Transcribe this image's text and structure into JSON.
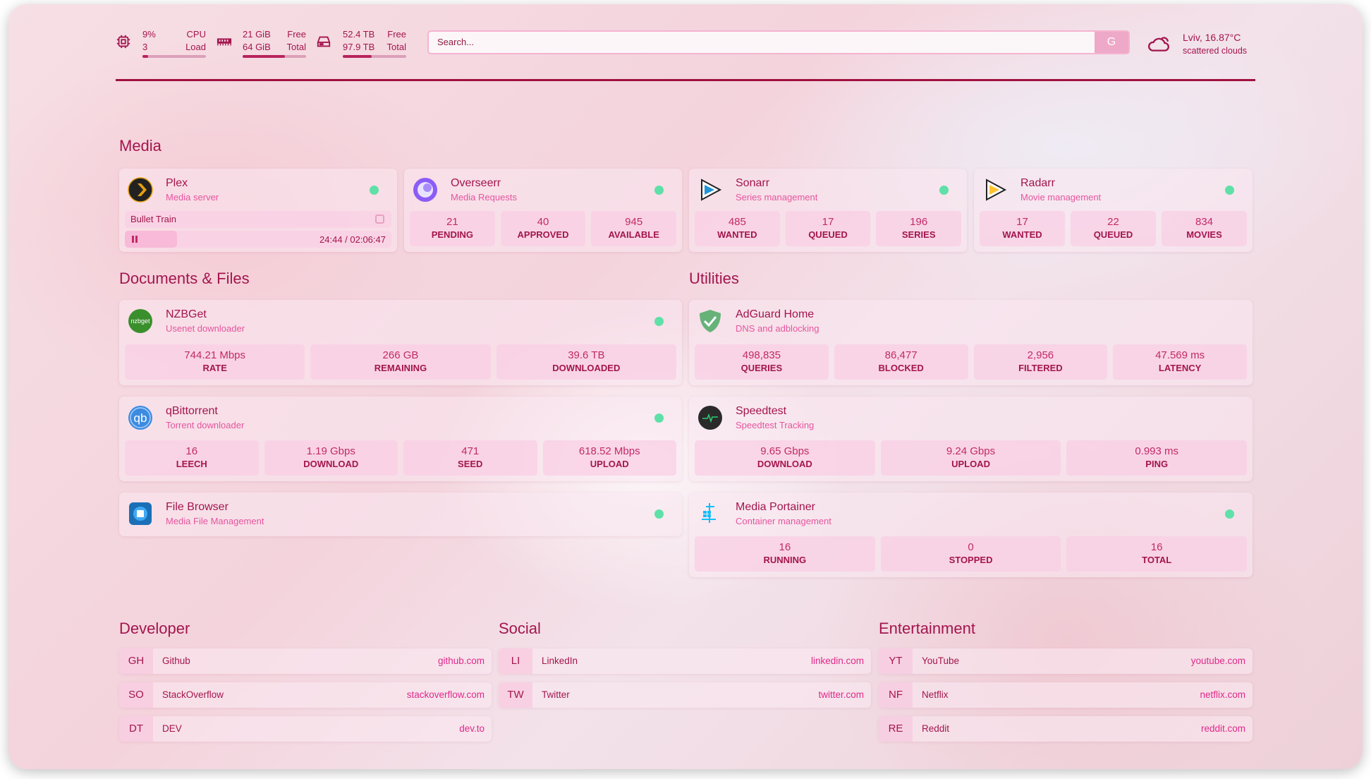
{
  "system": {
    "cpu": {
      "icon": "cpu-icon",
      "value1": "9%",
      "value2": "3",
      "label1": "CPU",
      "label2": "Load",
      "fill_percent": 9
    },
    "memory": {
      "icon": "memory-icon",
      "value1": "21 GiB",
      "value2": "64 GiB",
      "label1": "Free",
      "label2": "Total",
      "fill_percent": 67
    },
    "disk": {
      "icon": "disk-icon",
      "value1": "52.4 TB",
      "value2": "97.9 TB",
      "label1": "Free",
      "label2": "Total",
      "fill_percent": 46
    }
  },
  "search": {
    "placeholder": "Search...",
    "provider_button": "G"
  },
  "weather": {
    "icon": "cloud-icon",
    "location": "Lviv, 16.87°C",
    "condition": "scattered clouds"
  },
  "colors": {
    "accent": "#a3154d",
    "subtitle": "#e6559e",
    "status_online": "#5fe0a8",
    "divider": "#a0103f"
  },
  "groups": [
    {
      "title": "Media",
      "services": [
        {
          "name": "Plex",
          "desc": "Media server",
          "icon": "plex-icon",
          "status": "online",
          "now_playing": {
            "title": "Bullet Train",
            "time": "24:44 / 02:06:47",
            "progress_percent": 19.5,
            "state": "paused"
          }
        },
        {
          "name": "Overseerr",
          "desc": "Media Requests",
          "icon": "overseerr-icon",
          "status": "online",
          "stats": [
            {
              "v": "21",
              "l": "PENDING"
            },
            {
              "v": "40",
              "l": "APPROVED"
            },
            {
              "v": "945",
              "l": "AVAILABLE"
            }
          ]
        },
        {
          "name": "Sonarr",
          "desc": "Series management",
          "icon": "sonarr-icon",
          "status": "online",
          "stats": [
            {
              "v": "485",
              "l": "WANTED"
            },
            {
              "v": "17",
              "l": "QUEUED"
            },
            {
              "v": "196",
              "l": "SERIES"
            }
          ]
        },
        {
          "name": "Radarr",
          "desc": "Movie management",
          "icon": "radarr-icon",
          "status": "online",
          "stats": [
            {
              "v": "17",
              "l": "WANTED"
            },
            {
              "v": "22",
              "l": "QUEUED"
            },
            {
              "v": "834",
              "l": "MOVIES"
            }
          ]
        }
      ]
    },
    {
      "title": "Documents & Files",
      "services": [
        {
          "name": "NZBGet",
          "desc": "Usenet downloader",
          "icon": "nzbget-icon",
          "icon_text": "nzbget",
          "status": "online",
          "stats": [
            {
              "v": "744.21 Mbps",
              "l": "RATE"
            },
            {
              "v": "266 GB",
              "l": "REMAINING"
            },
            {
              "v": "39.6 TB",
              "l": "DOWNLOADED"
            }
          ]
        },
        {
          "name": "qBittorrent",
          "desc": "Torrent downloader",
          "icon": "qbittorrent-icon",
          "icon_text": "qb",
          "status": "online",
          "stats": [
            {
              "v": "16",
              "l": "LEECH"
            },
            {
              "v": "1.19 Gbps",
              "l": "DOWNLOAD"
            },
            {
              "v": "471",
              "l": "SEED"
            },
            {
              "v": "618.52 Mbps",
              "l": "UPLOAD"
            }
          ]
        },
        {
          "name": "File Browser",
          "desc": "Media File Management",
          "icon": "filebrowser-icon",
          "status": "online"
        }
      ]
    },
    {
      "title": "Utilities",
      "services": [
        {
          "name": "AdGuard Home",
          "desc": "DNS and adblocking",
          "icon": "adguard-shield-icon",
          "stats": [
            {
              "v": "498,835",
              "l": "QUERIES"
            },
            {
              "v": "86,477",
              "l": "BLOCKED"
            },
            {
              "v": "2,956",
              "l": "FILTERED"
            },
            {
              "v": "47.569 ms",
              "l": "LATENCY"
            }
          ]
        },
        {
          "name": "Speedtest",
          "desc": "Speedtest Tracking",
          "icon": "speedtest-pulse-icon",
          "stats": [
            {
              "v": "9.65 Gbps",
              "l": "DOWNLOAD"
            },
            {
              "v": "9.24 Gbps",
              "l": "UPLOAD"
            },
            {
              "v": "0.993 ms",
              "l": "PING"
            }
          ]
        },
        {
          "name": "Media Portainer",
          "desc": "Container management",
          "icon": "portainer-icon",
          "status": "online",
          "stats": [
            {
              "v": "16",
              "l": "RUNNING"
            },
            {
              "v": "0",
              "l": "STOPPED"
            },
            {
              "v": "16",
              "l": "TOTAL"
            }
          ]
        }
      ]
    }
  ],
  "bookmarks": [
    {
      "title": "Developer",
      "items": [
        {
          "abbr": "GH",
          "name": "Github",
          "url": "github.com"
        },
        {
          "abbr": "SO",
          "name": "StackOverflow",
          "url": "stackoverflow.com"
        },
        {
          "abbr": "DT",
          "name": "DEV",
          "url": "dev.to"
        }
      ]
    },
    {
      "title": "Social",
      "items": [
        {
          "abbr": "LI",
          "name": "LinkedIn",
          "url": "linkedin.com"
        },
        {
          "abbr": "TW",
          "name": "Twitter",
          "url": "twitter.com"
        }
      ]
    },
    {
      "title": "Entertainment",
      "items": [
        {
          "abbr": "YT",
          "name": "YouTube",
          "url": "youtube.com"
        },
        {
          "abbr": "NF",
          "name": "Netflix",
          "url": "netflix.com"
        },
        {
          "abbr": "RE",
          "name": "Reddit",
          "url": "reddit.com"
        }
      ]
    }
  ]
}
